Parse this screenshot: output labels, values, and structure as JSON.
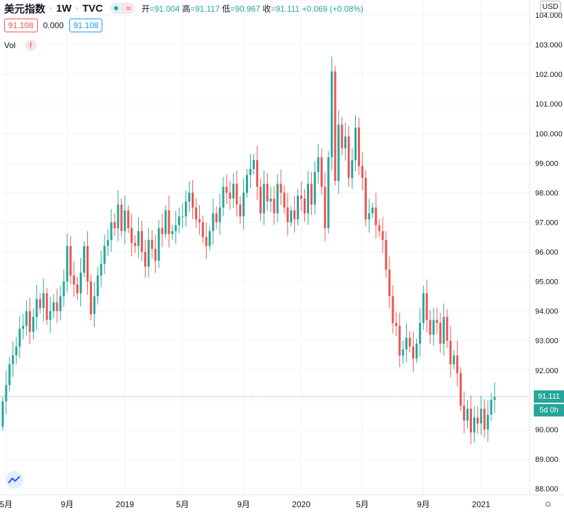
{
  "header": {
    "symbol": "美元指数",
    "interval": "1W",
    "source": "TVC",
    "open_label": "开",
    "open": "=91.004",
    "high_label": "高",
    "high": "=91.117",
    "low_label": "低",
    "low": "=90.967",
    "close_label": "收",
    "close": "=91.111",
    "change": "+0.069 (+0.08%)"
  },
  "quote_row": {
    "bid": "91.108",
    "spread": "0.000",
    "ask": "91.108"
  },
  "volume_row": {
    "label": "Vol",
    "warning_glyph": "!"
  },
  "axis": {
    "currency": "USD"
  },
  "last_price": {
    "value": "91.111",
    "countdown": "5d 0h"
  },
  "icons": {
    "logo": "tradingview-cloud-icon",
    "settings": "gear-icon",
    "status": "dot-icon",
    "compare": "wave-icon"
  },
  "colors": {
    "up": "#26a69a",
    "down": "#ef5350",
    "grid": "#f0f3fa",
    "text": "#131722"
  },
  "chart_data": {
    "type": "candlestick",
    "title": "美元指数 · 1W · TVC",
    "ylim": [
      87.9,
      104.2
    ],
    "y_ticks": [
      "88.000",
      "89.000",
      "90.000",
      "91.000",
      "92.000",
      "93.000",
      "94.000",
      "95.000",
      "96.000",
      "97.000",
      "98.000",
      "99.000",
      "100.000",
      "101.000",
      "102.000",
      "103.000",
      "104.000"
    ],
    "x_ticks": [
      {
        "label": "5月",
        "index": 1
      },
      {
        "label": "9月",
        "index": 19
      },
      {
        "label": "2019",
        "index": 36
      },
      {
        "label": "5月",
        "index": 53
      },
      {
        "label": "9月",
        "index": 71
      },
      {
        "label": "2020",
        "index": 88
      },
      {
        "label": "5月",
        "index": 106
      },
      {
        "label": "9月",
        "index": 124
      },
      {
        "label": "2021",
        "index": 141
      }
    ],
    "close": [
      90.95,
      91.5,
      92.2,
      92.5,
      92.8,
      93.4,
      93.5,
      94.0,
      93.3,
      93.8,
      94.4,
      94.1,
      94.6,
      93.7,
      94.0,
      94.3,
      94.0,
      94.5,
      95.0,
      96.2,
      95.2,
      94.9,
      94.6,
      95.3,
      96.2,
      95.0,
      93.9,
      94.5,
      95.2,
      95.6,
      96.2,
      96.4,
      97.0,
      96.8,
      97.6,
      96.7,
      97.4,
      96.8,
      96.3,
      96.2,
      96.7,
      96.0,
      95.5,
      96.4,
      96.1,
      95.7,
      96.8,
      96.6,
      97.4,
      96.6,
      96.7,
      96.9,
      97.2,
      97.2,
      97.7,
      98.0,
      97.5,
      97.1,
      97.0,
      96.5,
      96.2,
      96.7,
      97.3,
      97.0,
      97.5,
      98.2,
      98.0,
      97.8,
      98.3,
      97.6,
      97.2,
      98.0,
      98.6,
      98.8,
      99.1,
      98.2,
      97.3,
      98.3,
      97.7,
      97.8,
      97.3,
      98.3,
      98.0,
      97.5,
      97.0,
      97.4,
      97.1,
      97.9,
      97.8,
      97.3,
      98.3,
      97.6,
      98.7,
      99.2,
      98.2,
      96.8,
      99.2,
      102.1,
      98.4,
      100.3,
      99.5,
      99.9,
      98.5,
      99.1,
      100.2,
      98.9,
      98.5,
      97.1,
      97.3,
      97.5,
      96.9,
      96.7,
      96.4,
      95.4,
      94.5,
      93.6,
      93.5,
      92.5,
      92.7,
      93.1,
      92.8,
      92.4,
      92.9,
      93.6,
      94.6,
      93.7,
      93.2,
      93.7,
      93.6,
      92.9,
      93.8,
      93.0,
      92.2,
      92.5,
      91.9,
      90.8,
      90.3,
      90.7,
      89.9,
      90.4,
      90.2,
      90.7,
      90.0,
      90.5,
      91.0,
      91.1
    ],
    "annotations": [
      "91.111",
      "5d 0h"
    ]
  }
}
